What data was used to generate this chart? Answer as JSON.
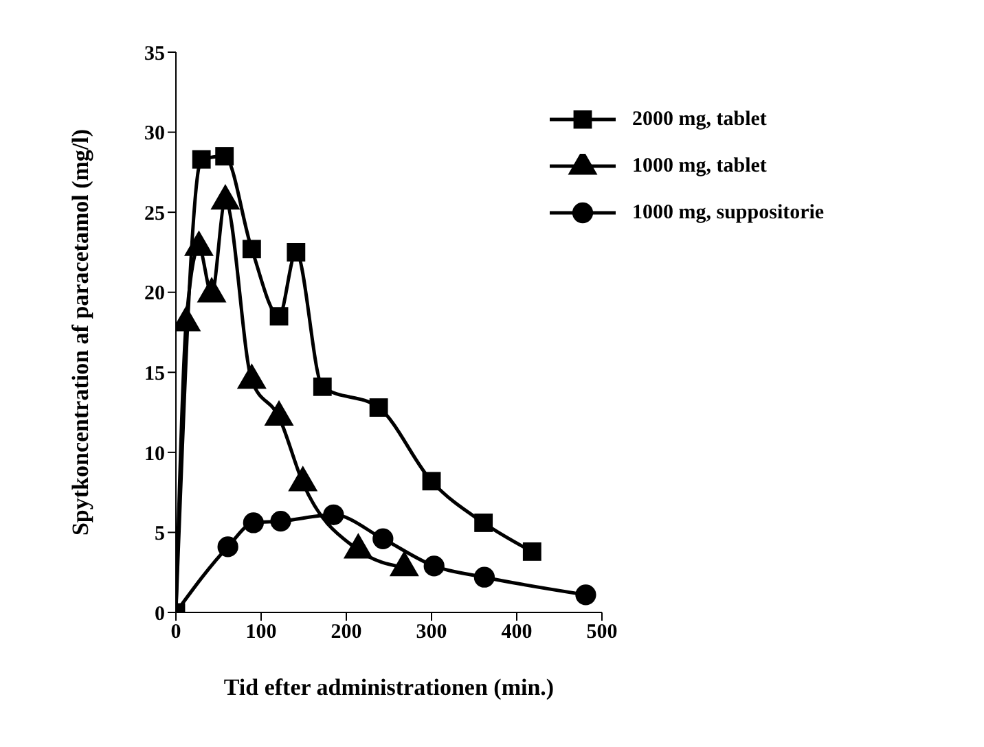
{
  "chart_data": {
    "type": "line",
    "xlabel": "Tid efter administrationen (min.)",
    "ylabel": "Spytkoncentration af paracetamol (mg/l)",
    "xlim": [
      0,
      500
    ],
    "xticks": [
      0,
      100,
      200,
      300,
      400,
      500
    ],
    "ylim": [
      0,
      35
    ],
    "yticks": [
      0,
      5,
      10,
      15,
      20,
      25,
      30,
      35
    ],
    "grid": false,
    "legend": "top right",
    "line_style": "solid",
    "series": [
      {
        "name": "2000 mg, tablet",
        "color": "#000000",
        "marker": "square",
        "x": [
          0,
          30,
          57,
          89,
          121,
          141,
          172,
          238,
          300,
          361,
          418
        ],
        "values": [
          0,
          28.3,
          28.5,
          22.7,
          18.5,
          22.5,
          14.1,
          12.8,
          8.2,
          5.6,
          3.8
        ]
      },
      {
        "name": "1000 mg, tablet",
        "color": "#000000",
        "marker": "triangle",
        "x": [
          0,
          12,
          27,
          42,
          58,
          89,
          121,
          149,
          214,
          268
        ],
        "values": [
          0,
          18.1,
          22.8,
          19.9,
          25.7,
          14.5,
          12.2,
          8.1,
          3.9,
          2.8
        ]
      },
      {
        "name": "1000 mg, suppositorie",
        "color": "#000000",
        "marker": "circle",
        "x": [
          0,
          61,
          91,
          123,
          185,
          243,
          303,
          362,
          481
        ],
        "values": [
          0,
          4.1,
          5.6,
          5.7,
          6.1,
          4.6,
          2.9,
          2.2,
          1.1
        ]
      }
    ]
  }
}
